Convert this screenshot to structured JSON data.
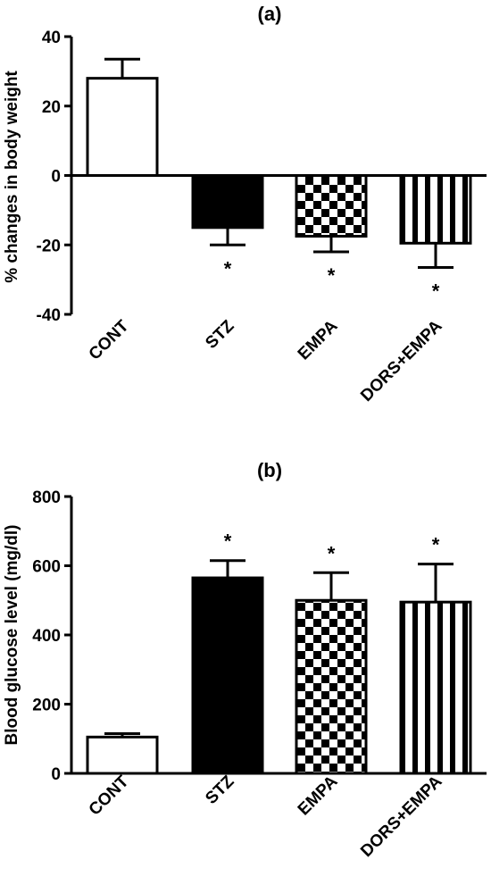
{
  "chart_data": [
    {
      "type": "bar",
      "title": "(a)",
      "ylabel": "% changes in body weight",
      "xlabel": "",
      "categories": [
        "CONT",
        "STZ",
        "EMPA",
        "DORS+EMPA"
      ],
      "values": [
        28,
        -15,
        -17.5,
        -19.5
      ],
      "errors": [
        5.5,
        5,
        4.5,
        7
      ],
      "significance": [
        "",
        "*",
        "*",
        "*"
      ],
      "ylim": [
        -40,
        40
      ],
      "yticks": [
        -40,
        -20,
        0,
        20,
        40
      ],
      "patterns": [
        "white",
        "black",
        "checker",
        "vstripes"
      ],
      "grid": false
    },
    {
      "type": "bar",
      "title": "(b)",
      "ylabel": "Blood glucose level (mg/dl)",
      "xlabel": "",
      "categories": [
        "CONT",
        "STZ",
        "EMPA",
        "DORS+EMPA"
      ],
      "values": [
        105,
        565,
        500,
        495
      ],
      "errors": [
        10,
        50,
        80,
        110
      ],
      "significance": [
        "",
        "*",
        "*",
        "*"
      ],
      "ylim": [
        0,
        800
      ],
      "yticks": [
        0,
        200,
        400,
        600,
        800
      ],
      "patterns": [
        "white",
        "black",
        "checker",
        "vstripes"
      ],
      "grid": false
    }
  ]
}
